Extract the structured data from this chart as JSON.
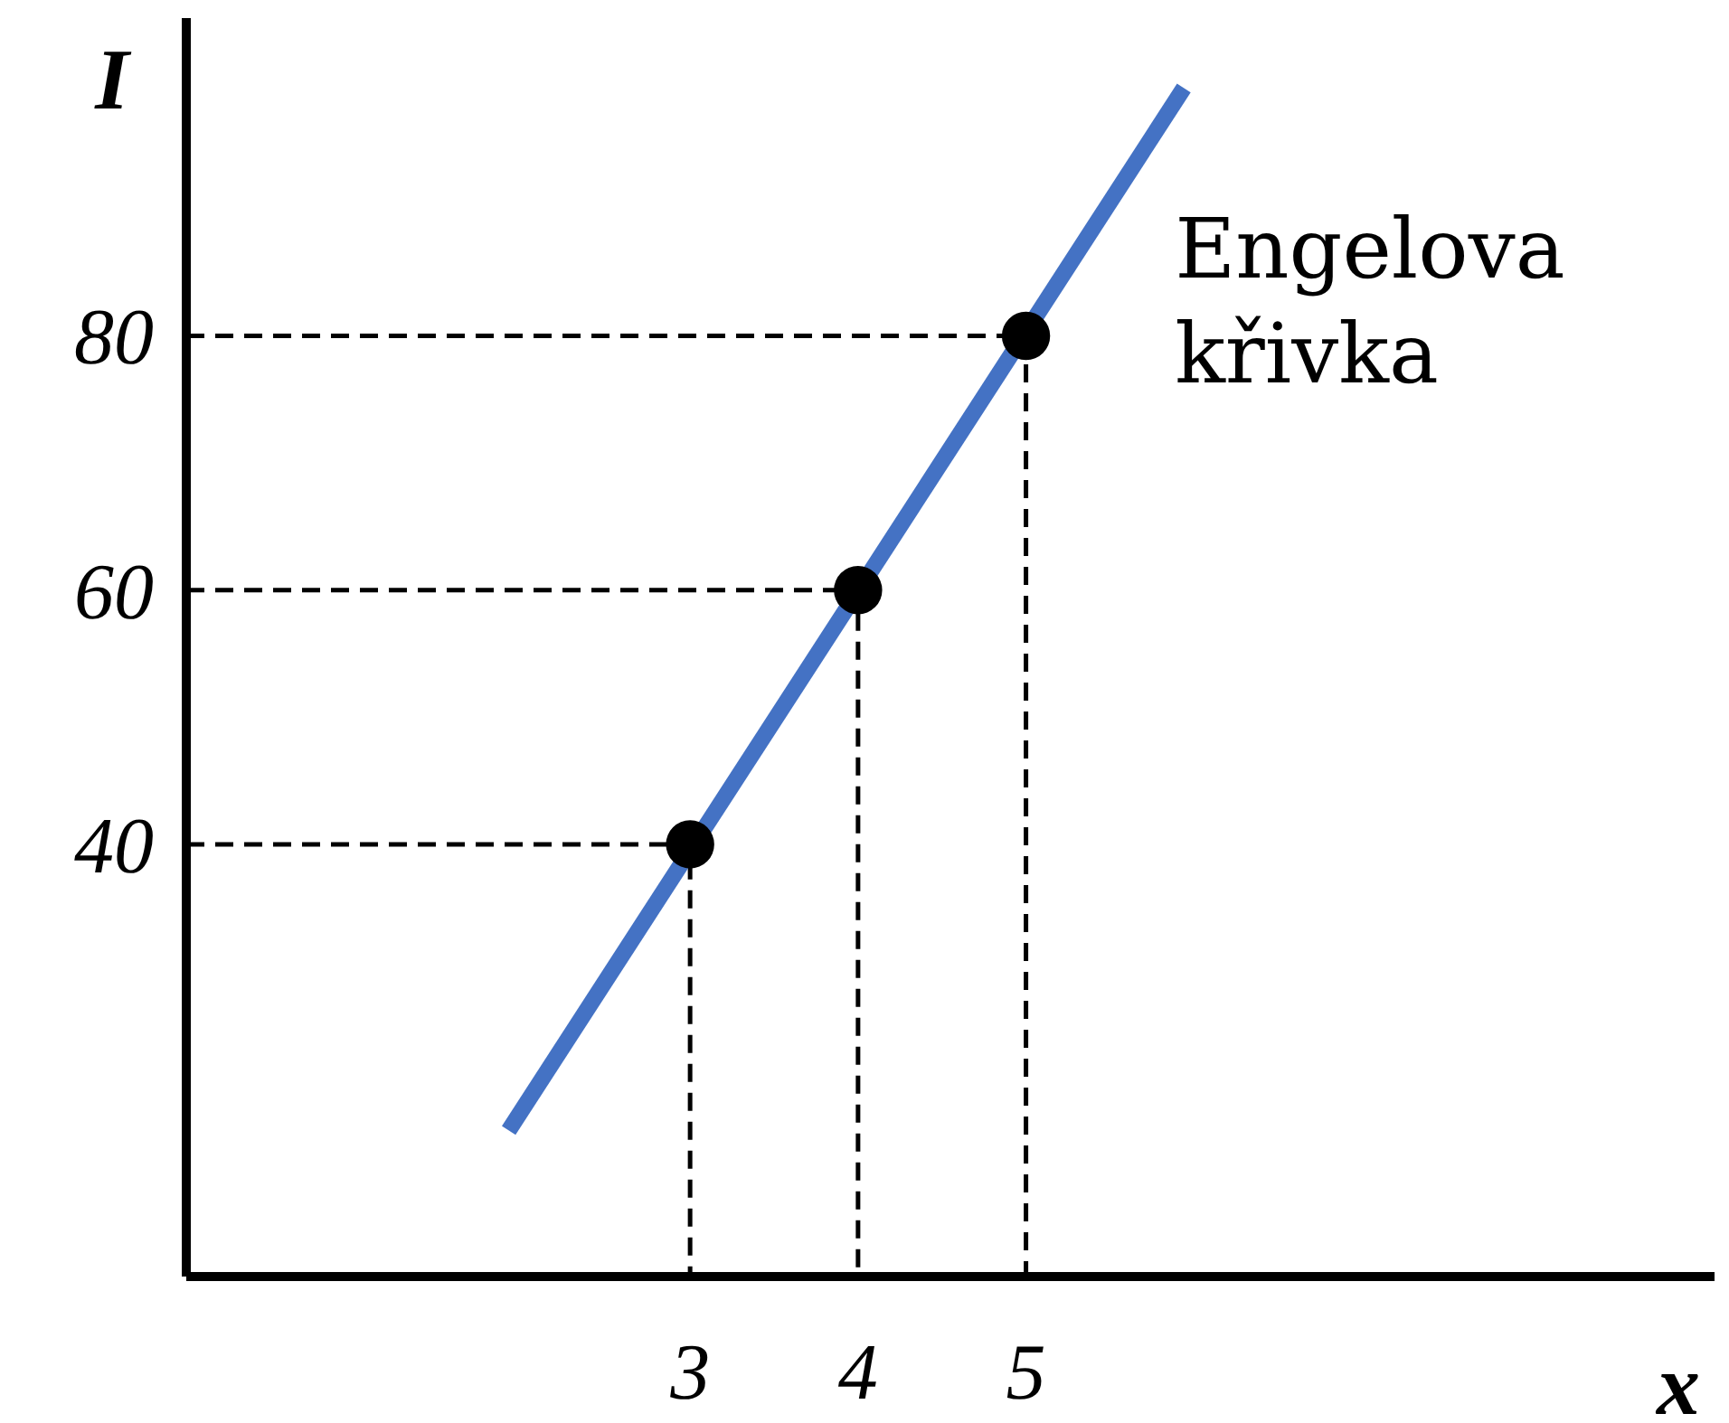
{
  "chart_data": {
    "type": "line",
    "xlabel": "x",
    "ylabel": "I",
    "xlim": [
      0,
      9.1
    ],
    "ylim": [
      6,
      105
    ],
    "xticks": [
      3,
      4,
      5
    ],
    "yticks": [
      40,
      60,
      80
    ],
    "grid": false,
    "legend": false,
    "series": [
      {
        "color": "#000000",
        "x": [
          0,
          3,
          3
        ],
        "values": [
          40,
          40,
          6
        ],
        "line_style": "dashed",
        "marker": "none"
      },
      {
        "color": "#000000",
        "x": [
          0,
          4,
          4
        ],
        "values": [
          60,
          60,
          6
        ],
        "line_style": "dashed",
        "marker": "none"
      },
      {
        "color": "#000000",
        "x": [
          0,
          5,
          5
        ],
        "values": [
          80,
          80,
          6
        ],
        "line_style": "dashed",
        "marker": "none"
      },
      {
        "name": "Engelova křivka",
        "color": "#4472c4",
        "x": [
          1.92,
          5.94
        ],
        "values": [
          17.5,
          99.5
        ],
        "marker": "none"
      },
      {
        "type": "scatter",
        "color": "#000000",
        "x": [
          3,
          4,
          5
        ],
        "values": [
          40,
          60,
          80
        ],
        "marker": "circle"
      }
    ]
  }
}
